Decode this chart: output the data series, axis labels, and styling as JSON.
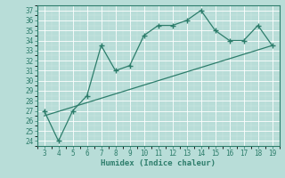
{
  "xlabel": "Humidex (Indice chaleur)",
  "x": [
    3,
    4,
    5,
    6,
    7,
    8,
    9,
    10,
    11,
    12,
    13,
    14,
    15,
    16,
    17,
    18,
    19
  ],
  "y": [
    27,
    24,
    27,
    28.5,
    33.5,
    31,
    31.5,
    34.5,
    35.5,
    35.5,
    36,
    37,
    35,
    34,
    34,
    35.5,
    33.5
  ],
  "trend_x": [
    3,
    19
  ],
  "trend_y": [
    26.5,
    33.5
  ],
  "line_color": "#2d7d6b",
  "bg_color": "#b8ddd8",
  "grid_color": "#c8e8e4",
  "ylim": [
    23.5,
    37.5
  ],
  "xlim": [
    2.5,
    19.5
  ],
  "yticks": [
    24,
    25,
    26,
    27,
    28,
    29,
    30,
    31,
    32,
    33,
    34,
    35,
    36,
    37
  ],
  "xticks": [
    3,
    4,
    5,
    6,
    7,
    8,
    9,
    10,
    11,
    12,
    13,
    14,
    15,
    16,
    17,
    18,
    19
  ],
  "tick_fontsize": 5.5,
  "label_fontsize": 6.5
}
